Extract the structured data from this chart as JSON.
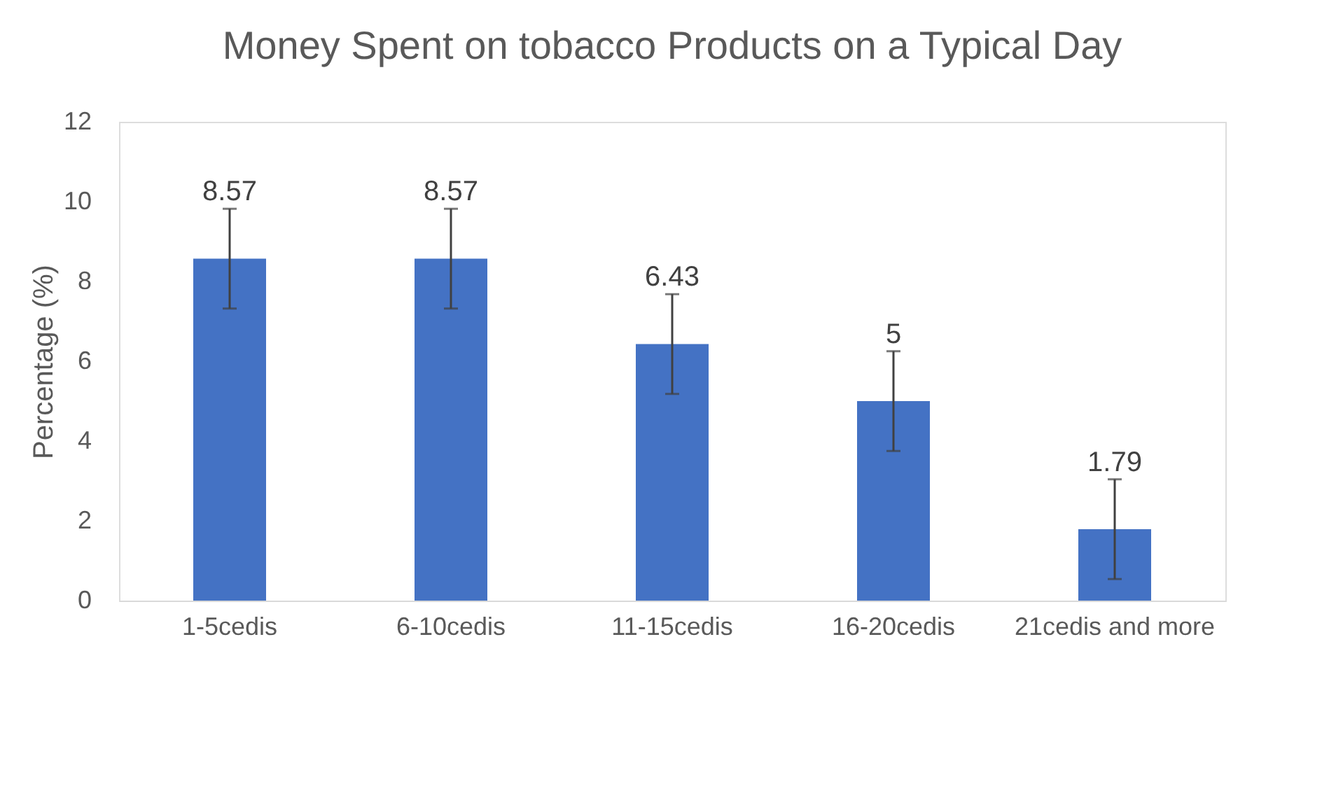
{
  "chart_data": {
    "type": "bar",
    "title": "Money Spent on tobacco Products on a Typical Day",
    "ylabel": "Percentage (%)",
    "categories": [
      "1-5cedis",
      "6-10cedis",
      "11-15cedis",
      "16-20cedis",
      "21cedis and more"
    ],
    "values": [
      8.57,
      8.57,
      6.43,
      5,
      1.79
    ],
    "errors": [
      1.25,
      1.25,
      1.25,
      1.25,
      1.25
    ],
    "color": "#4472c4",
    "ylim": [
      0,
      12
    ],
    "yticks": [
      0,
      2,
      4,
      6,
      8,
      10,
      12
    ],
    "data_labels": true
  }
}
